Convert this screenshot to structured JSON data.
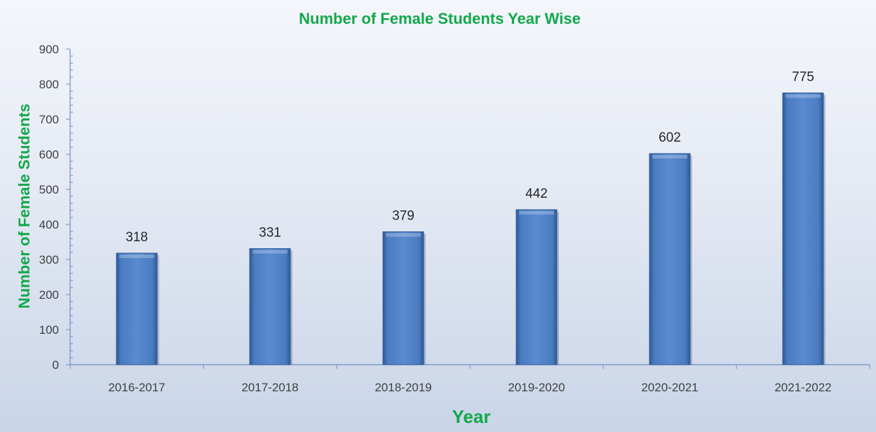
{
  "chart_data": {
    "type": "bar",
    "title": "Number of Female Students Year Wise",
    "xlabel": "Year",
    "ylabel": "Number of Female Students",
    "categories": [
      "2016-2017",
      "2017-2018",
      "2018-2019",
      "2019-2020",
      "2020-2021",
      "2021-2022"
    ],
    "values": [
      318,
      331,
      379,
      442,
      602,
      775
    ],
    "data_labels": [
      "318",
      "331",
      "379",
      "442",
      "602",
      "775"
    ],
    "ylim": [
      0,
      900
    ],
    "yticks": [
      0,
      100,
      200,
      300,
      400,
      500,
      600,
      700,
      800,
      900
    ],
    "ytick_labels": [
      "0",
      "100",
      "200",
      "300",
      "400",
      "500",
      "600",
      "700",
      "800",
      "900"
    ],
    "grid": false,
    "legend": "none",
    "colors": {
      "bar": "#4f81c7",
      "bar_dark": "#2f5a94",
      "title": "#12a84a",
      "axis": "#6f8fbf"
    }
  }
}
